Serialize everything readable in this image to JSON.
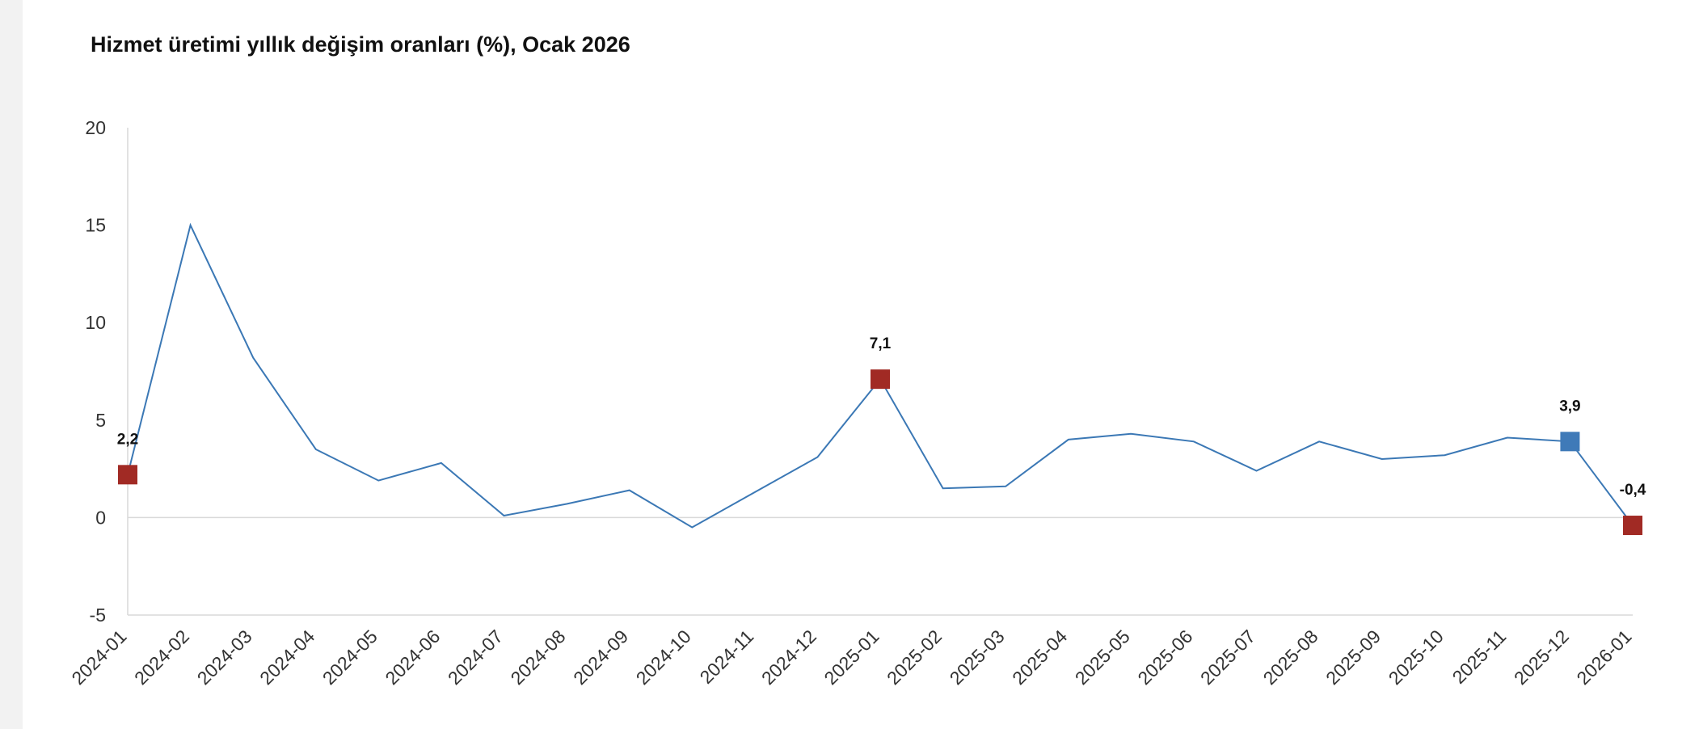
{
  "chart_data": {
    "type": "line",
    "title": "Hizmet üretimi yıllık değişim oranları (%), Ocak 2026",
    "xlabel": "",
    "ylabel": "",
    "ylim": [
      -5,
      20
    ],
    "yticks": [
      20,
      15,
      10,
      5,
      0,
      -5
    ],
    "grid": false,
    "legend": "none",
    "categories": [
      "2024-01",
      "2024-02",
      "2024-03",
      "2024-04",
      "2024-05",
      "2024-06",
      "2024-07",
      "2024-08",
      "2024-09",
      "2024-10",
      "2024-11",
      "2024-12",
      "2025-01",
      "2025-02",
      "2025-03",
      "2025-04",
      "2025-05",
      "2025-06",
      "2025-07",
      "2025-08",
      "2025-09",
      "2025-10",
      "2025-11",
      "2025-12",
      "2026-01"
    ],
    "series": [
      {
        "values": [
          2.2,
          15.0,
          8.2,
          3.5,
          1.9,
          2.8,
          0.1,
          0.7,
          1.4,
          -0.5,
          1.3,
          3.1,
          7.1,
          1.5,
          1.6,
          4.0,
          4.3,
          3.9,
          2.4,
          3.9,
          3.0,
          3.2,
          4.1,
          3.9,
          -0.4
        ],
        "color": "#3b78b5"
      }
    ],
    "highlighted_points": [
      {
        "category": "2024-01",
        "value": 2.2,
        "label": "2,2",
        "color": "#a12a24"
      },
      {
        "category": "2025-01",
        "value": 7.1,
        "label": "7,1",
        "color": "#a12a24"
      },
      {
        "category": "2025-12",
        "value": 3.9,
        "label": "3,9",
        "color": "#3f7ab8"
      },
      {
        "category": "2026-01",
        "value": -0.4,
        "label": "-0,4",
        "color": "#a12a24"
      }
    ],
    "colors": {
      "line": "#3b78b5",
      "axis": "#d9d9d9",
      "zero_line": "#d9d9d9"
    }
  }
}
